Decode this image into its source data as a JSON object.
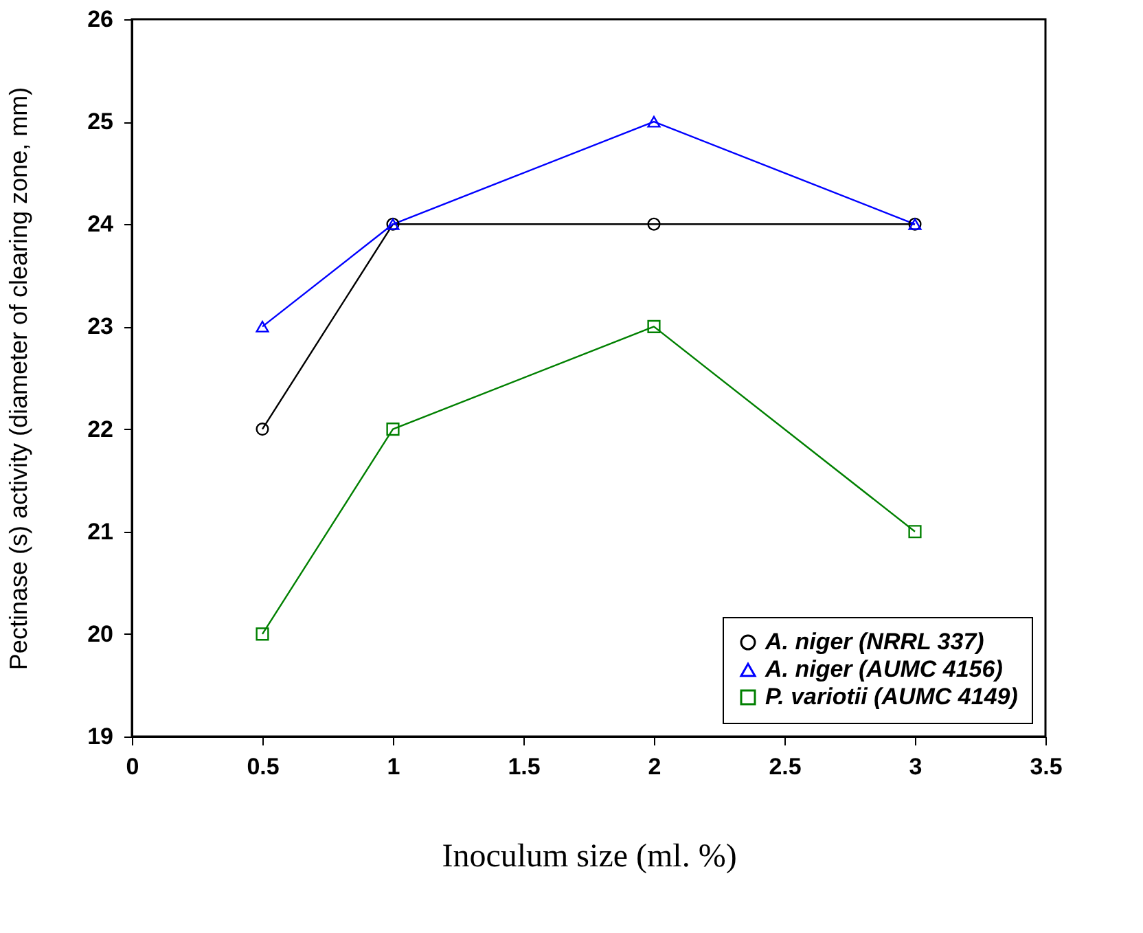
{
  "chart_data": {
    "type": "line",
    "xlabel": "Inoculum size (ml. %)",
    "ylabel": "Pectinase (s) activity (diameter of clearing zone, mm)",
    "x": [
      0.5,
      1,
      2,
      3
    ],
    "series": [
      {
        "name": "A. niger (NRRL 337)",
        "color": "#000000",
        "marker": "circle",
        "values": [
          22,
          24,
          24,
          24
        ]
      },
      {
        "name": "A. niger (AUMC 4156)",
        "color": "#0000ff",
        "marker": "triangle",
        "values": [
          23,
          24,
          25,
          24
        ]
      },
      {
        "name": "P. variotii (AUMC 4149)",
        "color": "#008000",
        "marker": "square",
        "values": [
          20,
          22,
          23,
          21
        ]
      }
    ],
    "xlim": [
      0,
      3.5
    ],
    "xticks": [
      0,
      0.5,
      1,
      1.5,
      2,
      2.5,
      3,
      3.5
    ],
    "ylim": [
      19,
      26
    ],
    "yticks": [
      19,
      20,
      21,
      22,
      23,
      24,
      25,
      26
    ],
    "grid": false,
    "legend": "bottom right",
    "line_style": "solid"
  }
}
